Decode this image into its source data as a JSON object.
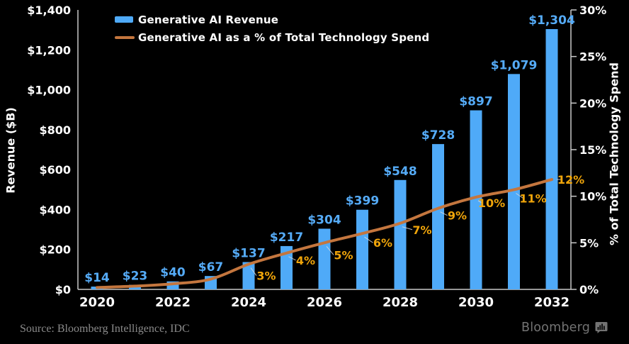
{
  "colors": {
    "background": "#000000",
    "bar": "#4faaf8",
    "bar_label": "#55abf7",
    "line": "#c4763e",
    "pct_label": "#f0a50a",
    "axis": "#c9c9c9",
    "axis_text": "#ffffff",
    "source_text": "#8a8a8a",
    "brand_text": "#737373"
  },
  "legend": {
    "items": [
      {
        "label": "Generative AI Revenue",
        "type": "bar"
      },
      {
        "label": "Generative AI as a % of Total Technology Spend",
        "type": "line"
      }
    ]
  },
  "footer": {
    "source": "Source: Bloomberg Intelligence, IDC",
    "brand": "Bloomberg"
  },
  "chart_data": {
    "type": "bar",
    "title": "",
    "categories": [
      "2020",
      "2021",
      "2022",
      "2023",
      "2024",
      "2025",
      "2026",
      "2027",
      "2028",
      "2029",
      "2030",
      "2031",
      "2032"
    ],
    "x_tick_labels": [
      "2020",
      "2022",
      "2024",
      "2026",
      "2028",
      "2030",
      "2032"
    ],
    "series": [
      {
        "name": "Generative AI Revenue",
        "type": "bar",
        "axis": "left",
        "values": [
          14,
          23,
          40,
          67,
          137,
          217,
          304,
          399,
          548,
          728,
          897,
          1079,
          1304
        ],
        "labels": [
          "$14",
          "$23",
          "$40",
          "$67",
          "$137",
          "$217",
          "$304",
          "$399",
          "$548",
          "$728",
          "$897",
          "$1,079",
          "$1,304"
        ]
      },
      {
        "name": "Generative AI as a % of Total Technology Spend",
        "type": "line",
        "axis": "right",
        "values": [
          0.2,
          0.35,
          0.6,
          1.1,
          2.7,
          3.9,
          5.0,
          6.0,
          7.1,
          8.7,
          9.9,
          10.7,
          11.8
        ],
        "point_labels": [
          {
            "i": 4,
            "label": "3%"
          },
          {
            "i": 5,
            "label": "4%"
          },
          {
            "i": 6,
            "label": "5%"
          },
          {
            "i": 7,
            "label": "6%"
          },
          {
            "i": 8,
            "label": "7%"
          },
          {
            "i": 9,
            "label": "9%"
          },
          {
            "i": 10,
            "label": "10%"
          },
          {
            "i": 11,
            "label": "11%"
          },
          {
            "i": 12,
            "label": "12%"
          }
        ]
      }
    ],
    "left_axis": {
      "title": "Revenue ($B)",
      "min": 0,
      "max": 1400,
      "ticks": [
        {
          "label": "$0",
          "v": 0
        },
        {
          "label": "$200",
          "v": 200
        },
        {
          "label": "$400",
          "v": 400
        },
        {
          "label": "$600",
          "v": 600
        },
        {
          "label": "$800",
          "v": 800
        },
        {
          "label": "$1,000",
          "v": 1000
        },
        {
          "label": "$1,200",
          "v": 1200
        },
        {
          "label": "$1,400",
          "v": 1400
        }
      ]
    },
    "right_axis": {
      "title": "% of Total Technology Spend",
      "min": 0,
      "max": 30,
      "ticks": [
        {
          "label": "0%",
          "v": 0
        },
        {
          "label": "5%",
          "v": 5
        },
        {
          "label": "10%",
          "v": 10
        },
        {
          "label": "15%",
          "v": 15
        },
        {
          "label": "20%",
          "v": 20
        },
        {
          "label": "25%",
          "v": 25
        },
        {
          "label": "30%",
          "v": 30
        }
      ]
    },
    "grid": false,
    "legend_position": "top-left-inside"
  }
}
